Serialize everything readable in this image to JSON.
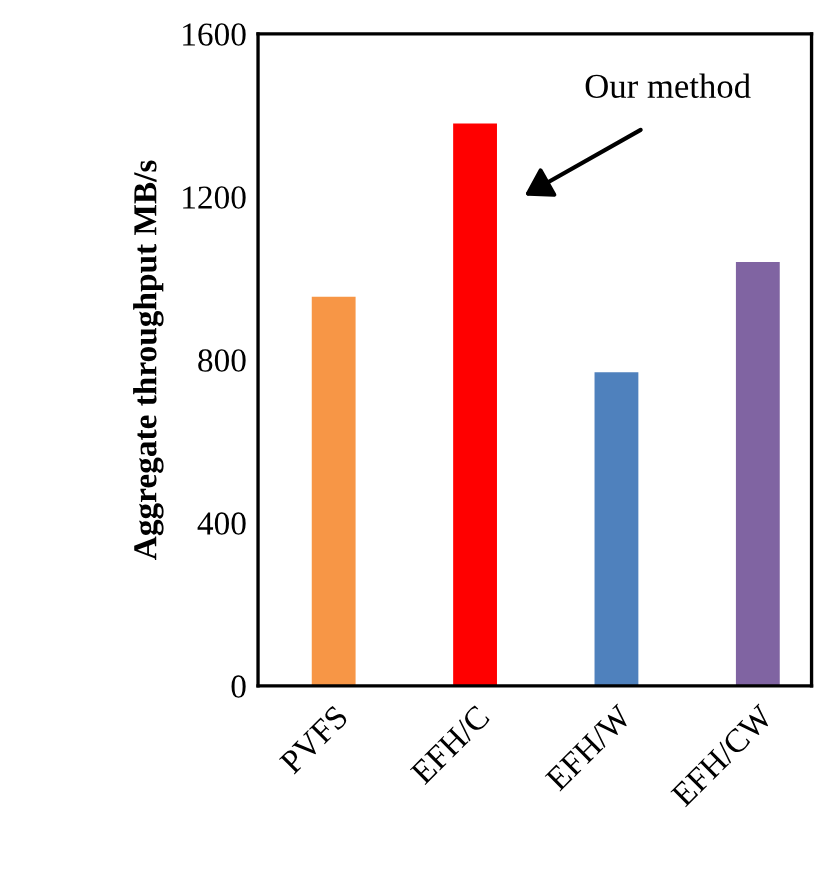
{
  "chart_data": {
    "type": "bar",
    "ylabel": "Aggregate throughput MB/s",
    "categories": [
      "PVFS",
      "EFH/C",
      "EFH/W",
      "EFH/CW"
    ],
    "values": [
      955,
      1380,
      770,
      1040
    ],
    "colors": [
      "#f79646",
      "#ff0000",
      "#4f81bd",
      "#8064a2"
    ],
    "ylim": [
      0,
      1600
    ],
    "yticks": [
      0,
      400,
      800,
      1200,
      1600
    ],
    "grid": false,
    "legend": false,
    "annotations": [
      "Our method"
    ]
  }
}
